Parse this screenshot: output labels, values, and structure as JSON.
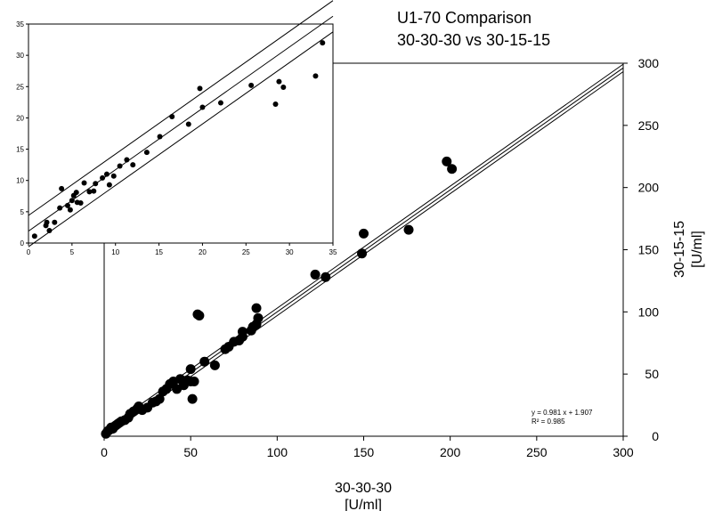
{
  "title": [
    "U1-70 Comparison",
    "30-30-30 vs 30-15-15"
  ],
  "chart_data": [
    {
      "type": "scatter",
      "name": "main",
      "title": "U1-70 Comparison 30-30-30 vs 30-15-15",
      "xlabel": [
        "30-30-30",
        "[U/ml]"
      ],
      "ylabel": [
        "30-15-15",
        "[U/ml]"
      ],
      "xlim": [
        0,
        300
      ],
      "ylim": [
        0,
        300
      ],
      "xticks": [
        0,
        50,
        100,
        150,
        200,
        250,
        300
      ],
      "yticks": [
        0,
        50,
        100,
        150,
        200,
        250,
        300
      ],
      "regression": {
        "slope": 0.981,
        "intercept": 1.907
      },
      "annotation": [
        "y = 0.981 x + 1.907",
        "R² = 0.985"
      ],
      "points": [
        [
          1,
          2
        ],
        [
          2,
          4
        ],
        [
          3,
          5
        ],
        [
          4,
          7
        ],
        [
          5,
          6
        ],
        [
          6,
          8
        ],
        [
          7,
          9
        ],
        [
          8,
          10
        ],
        [
          9,
          11
        ],
        [
          10,
          12
        ],
        [
          12,
          13
        ],
        [
          14,
          15
        ],
        [
          15,
          18
        ],
        [
          17,
          20
        ],
        [
          19,
          22
        ],
        [
          20,
          24
        ],
        [
          22,
          21
        ],
        [
          25,
          23
        ],
        [
          28,
          27
        ],
        [
          30,
          28
        ],
        [
          32,
          30
        ],
        [
          34,
          36
        ],
        [
          36,
          38
        ],
        [
          38,
          42
        ],
        [
          40,
          44
        ],
        [
          42,
          38
        ],
        [
          44,
          46
        ],
        [
          46,
          41
        ],
        [
          48,
          45
        ],
        [
          50,
          44
        ],
        [
          50,
          54
        ],
        [
          52,
          44
        ],
        [
          51,
          30
        ],
        [
          54,
          98
        ],
        [
          55,
          97
        ],
        [
          58,
          60
        ],
        [
          64,
          57
        ],
        [
          70,
          70
        ],
        [
          72,
          72
        ],
        [
          75,
          76
        ],
        [
          78,
          77
        ],
        [
          80,
          80
        ],
        [
          80,
          84
        ],
        [
          85,
          85
        ],
        [
          86,
          88
        ],
        [
          88,
          90
        ],
        [
          88,
          103
        ],
        [
          89,
          95
        ],
        [
          122,
          130
        ],
        [
          128,
          128
        ],
        [
          149,
          147
        ],
        [
          150,
          163
        ],
        [
          176,
          166
        ],
        [
          198,
          221
        ],
        [
          201,
          215
        ]
      ]
    },
    {
      "type": "scatter",
      "name": "inset",
      "xlim": [
        0,
        35
      ],
      "ylim": [
        0,
        35
      ],
      "xticks": [
        0,
        5,
        10,
        15,
        20,
        25,
        30,
        35
      ],
      "yticks": [
        0,
        5,
        10,
        15,
        20,
        25,
        30,
        35
      ],
      "points": [
        [
          0.7,
          1.1
        ],
        [
          2.0,
          2.8
        ],
        [
          2.1,
          3.3
        ],
        [
          2.4,
          2.0
        ],
        [
          3.0,
          3.3
        ],
        [
          3.6,
          5.6
        ],
        [
          3.8,
          8.7
        ],
        [
          4.5,
          6.0
        ],
        [
          4.8,
          5.3
        ],
        [
          5.0,
          6.8
        ],
        [
          5.2,
          7.6
        ],
        [
          5.5,
          8.1
        ],
        [
          5.6,
          6.5
        ],
        [
          6.0,
          6.4
        ],
        [
          6.4,
          9.6
        ],
        [
          7.0,
          8.2
        ],
        [
          7.5,
          8.3
        ],
        [
          7.7,
          9.5
        ],
        [
          8.5,
          10.4
        ],
        [
          9.0,
          11.0
        ],
        [
          9.3,
          9.3
        ],
        [
          9.8,
          10.7
        ],
        [
          10.5,
          12.3
        ],
        [
          11.3,
          13.3
        ],
        [
          12.0,
          12.5
        ],
        [
          13.6,
          14.5
        ],
        [
          15.1,
          17.0
        ],
        [
          16.5,
          20.2
        ],
        [
          18.4,
          19.0
        ],
        [
          19.7,
          24.7
        ],
        [
          20.0,
          21.7
        ],
        [
          22.1,
          22.4
        ],
        [
          25.6,
          25.2
        ],
        [
          28.4,
          22.2
        ],
        [
          28.8,
          25.8
        ],
        [
          29.3,
          24.9
        ],
        [
          33.0,
          26.7
        ],
        [
          33.8,
          32.0
        ]
      ]
    }
  ]
}
